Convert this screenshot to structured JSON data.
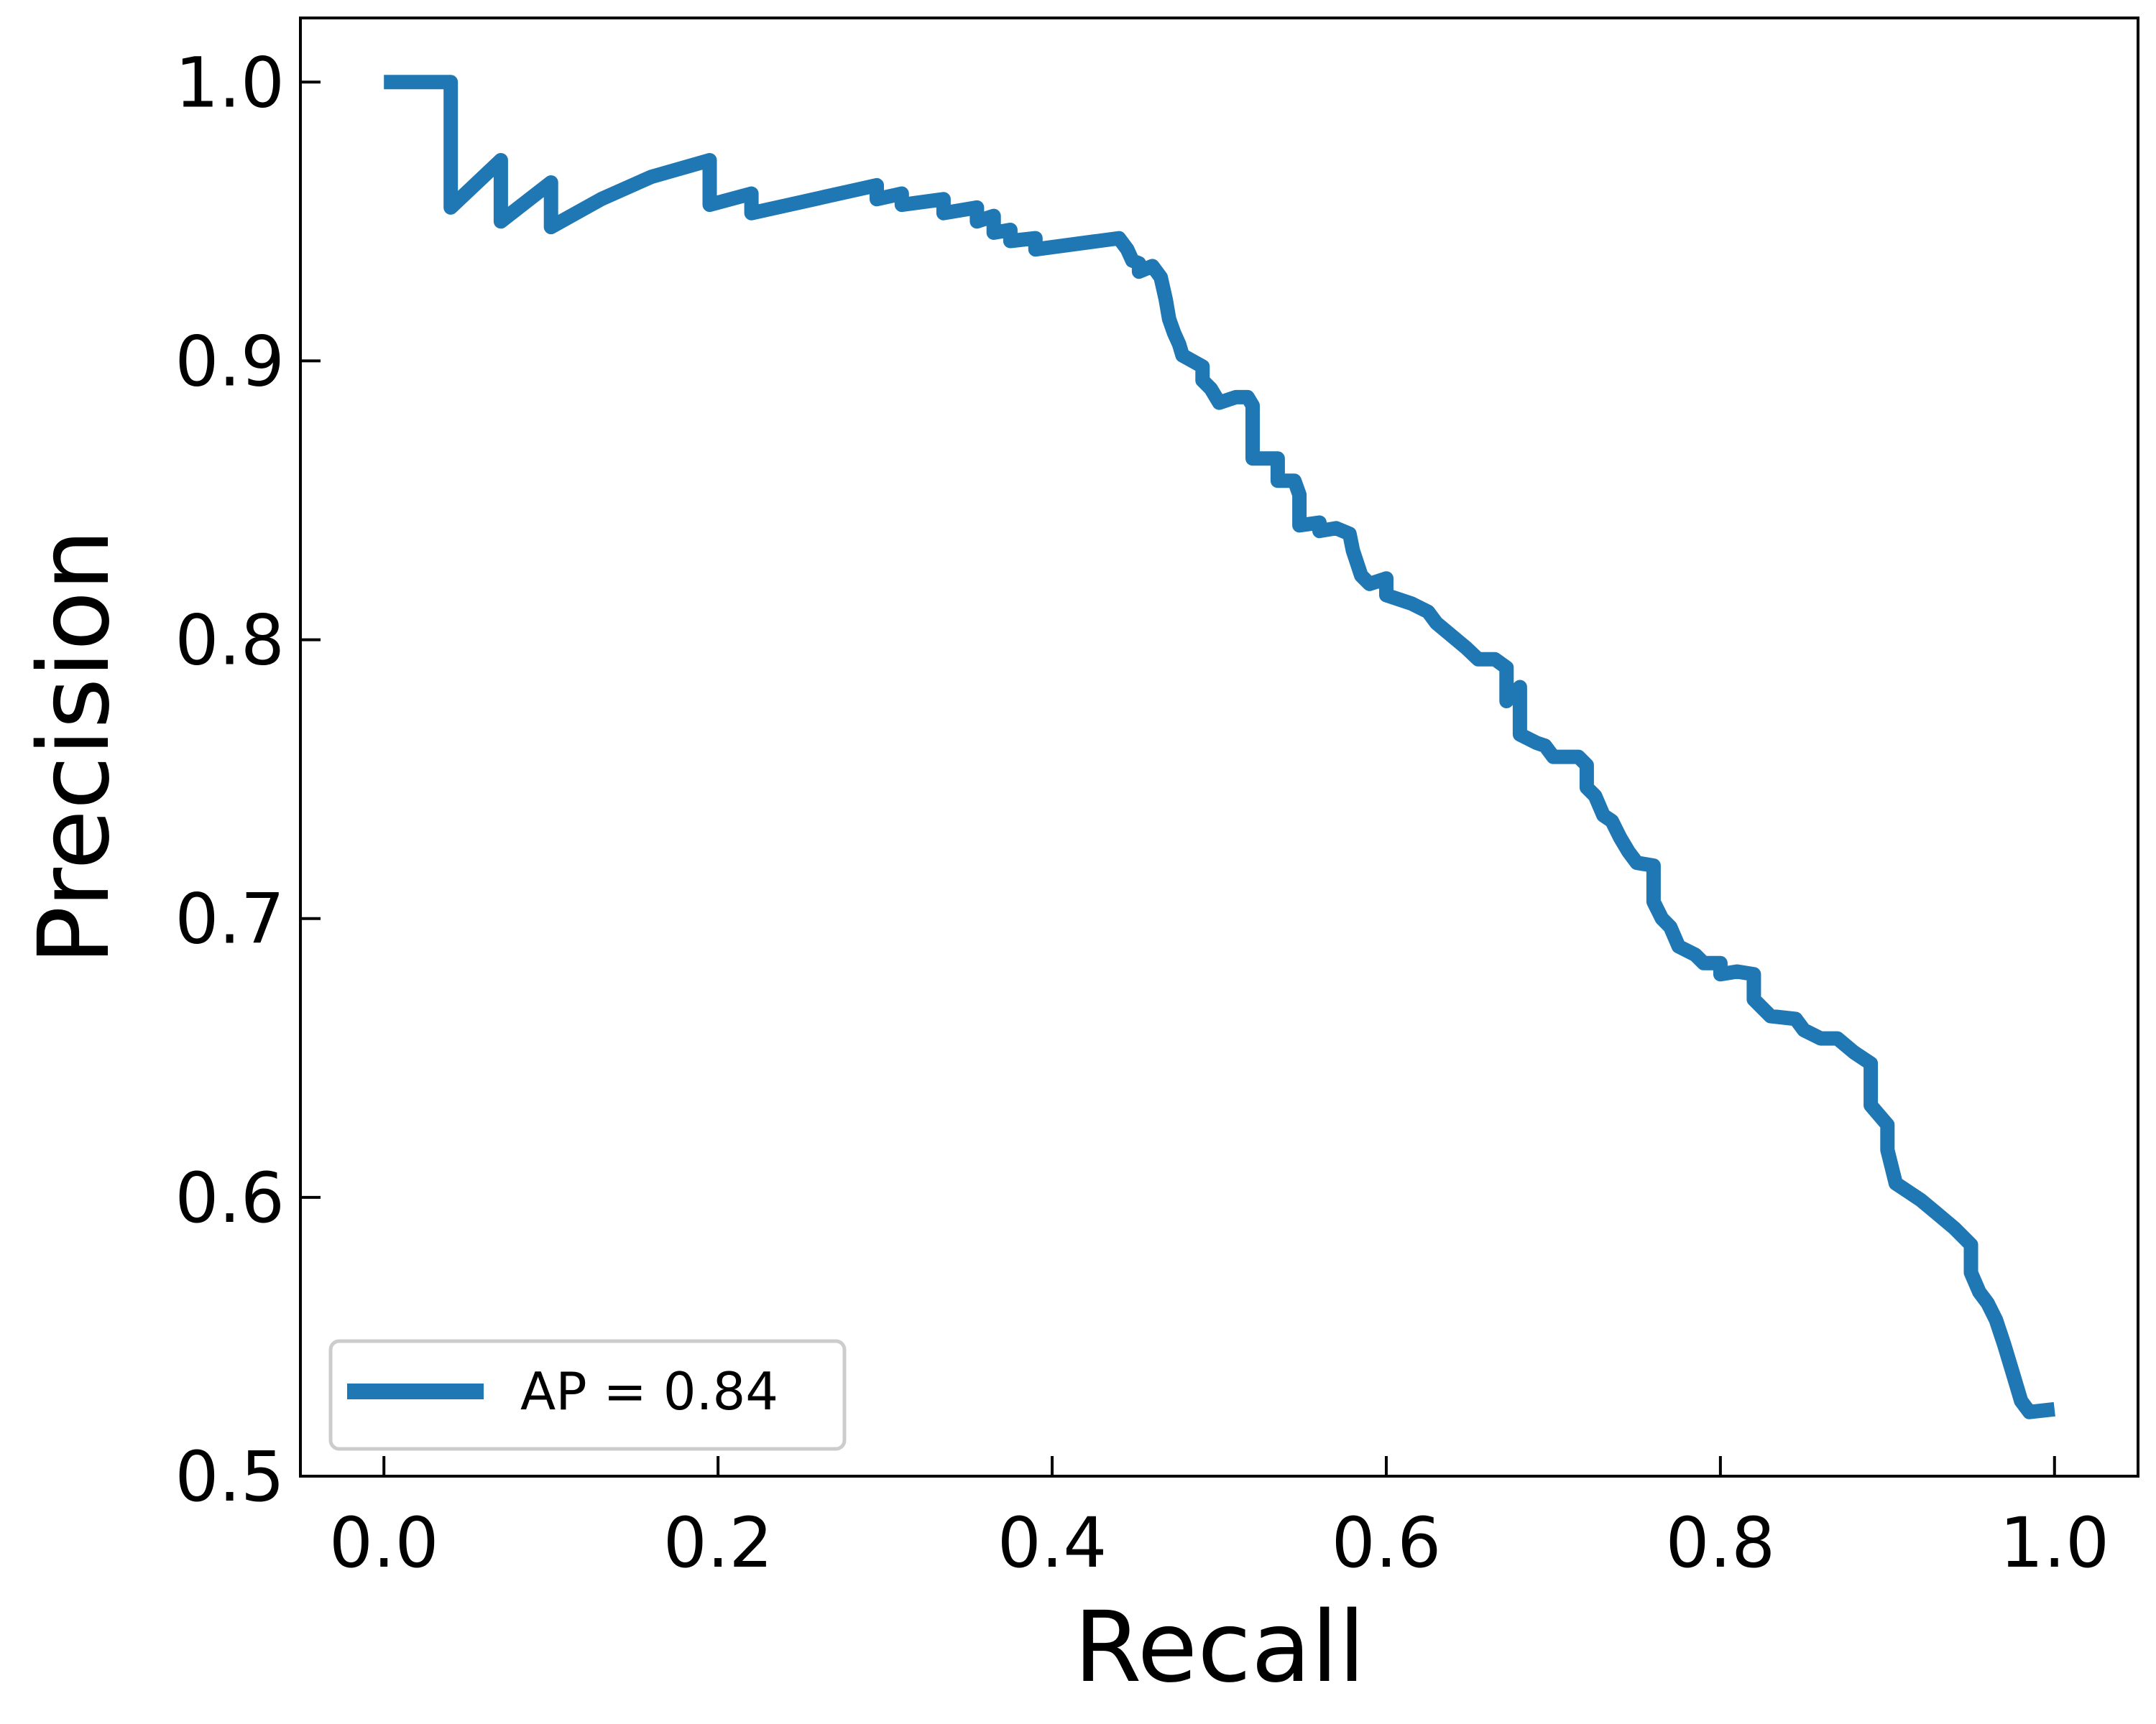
{
  "chart_data": {
    "type": "line",
    "title": "",
    "xlabel": "Recall",
    "ylabel": "Precision",
    "xlim": [
      -0.05,
      1.05
    ],
    "ylim": [
      0.5,
      1.023
    ],
    "x_ticks": [
      "0.0",
      "0.2",
      "0.4",
      "0.6",
      "0.8",
      "1.0"
    ],
    "y_ticks": [
      "0.5",
      "0.6",
      "0.7",
      "0.8",
      "0.9",
      "1.0"
    ],
    "grid": false,
    "legend_position": "lower-left",
    "series": [
      {
        "name": "AP = 0.84",
        "color": "#1f77b4",
        "points": [
          [
            0.0,
            1.0
          ],
          [
            0.04,
            1.0
          ],
          [
            0.04,
            0.955
          ],
          [
            0.07,
            0.972
          ],
          [
            0.07,
            0.95
          ],
          [
            0.1,
            0.964
          ],
          [
            0.1,
            0.948
          ],
          [
            0.13,
            0.958
          ],
          [
            0.16,
            0.966
          ],
          [
            0.195,
            0.972
          ],
          [
            0.195,
            0.956
          ],
          [
            0.22,
            0.96
          ],
          [
            0.22,
            0.953
          ],
          [
            0.25,
            0.957
          ],
          [
            0.295,
            0.963
          ],
          [
            0.295,
            0.958
          ],
          [
            0.31,
            0.96
          ],
          [
            0.31,
            0.956
          ],
          [
            0.335,
            0.958
          ],
          [
            0.335,
            0.953
          ],
          [
            0.355,
            0.955
          ],
          [
            0.355,
            0.95
          ],
          [
            0.365,
            0.952
          ],
          [
            0.365,
            0.946
          ],
          [
            0.375,
            0.947
          ],
          [
            0.375,
            0.943
          ],
          [
            0.39,
            0.944
          ],
          [
            0.39,
            0.94
          ],
          [
            0.44,
            0.944
          ],
          [
            0.445,
            0.94
          ],
          [
            0.448,
            0.936
          ],
          [
            0.452,
            0.935
          ],
          [
            0.452,
            0.932
          ],
          [
            0.46,
            0.934
          ],
          [
            0.465,
            0.93
          ],
          [
            0.468,
            0.922
          ],
          [
            0.47,
            0.915
          ],
          [
            0.473,
            0.91
          ],
          [
            0.476,
            0.906
          ],
          [
            0.478,
            0.902
          ],
          [
            0.49,
            0.898
          ],
          [
            0.49,
            0.893
          ],
          [
            0.495,
            0.89
          ],
          [
            0.5,
            0.885
          ],
          [
            0.51,
            0.887
          ],
          [
            0.517,
            0.887
          ],
          [
            0.52,
            0.884
          ],
          [
            0.52,
            0.865
          ],
          [
            0.535,
            0.865
          ],
          [
            0.535,
            0.857
          ],
          [
            0.545,
            0.857
          ],
          [
            0.548,
            0.852
          ],
          [
            0.548,
            0.841
          ],
          [
            0.56,
            0.842
          ],
          [
            0.56,
            0.839
          ],
          [
            0.57,
            0.84
          ],
          [
            0.578,
            0.838
          ],
          [
            0.58,
            0.832
          ],
          [
            0.585,
            0.823
          ],
          [
            0.59,
            0.82
          ],
          [
            0.6,
            0.822
          ],
          [
            0.6,
            0.816
          ],
          [
            0.615,
            0.813
          ],
          [
            0.625,
            0.81
          ],
          [
            0.63,
            0.806
          ],
          [
            0.64,
            0.801
          ],
          [
            0.648,
            0.797
          ],
          [
            0.655,
            0.793
          ],
          [
            0.665,
            0.793
          ],
          [
            0.672,
            0.79
          ],
          [
            0.672,
            0.778
          ],
          [
            0.68,
            0.783
          ],
          [
            0.68,
            0.766
          ],
          [
            0.69,
            0.763
          ],
          [
            0.695,
            0.762
          ],
          [
            0.7,
            0.758
          ],
          [
            0.715,
            0.758
          ],
          [
            0.72,
            0.755
          ],
          [
            0.72,
            0.747
          ],
          [
            0.725,
            0.744
          ],
          [
            0.73,
            0.737
          ],
          [
            0.735,
            0.735
          ],
          [
            0.74,
            0.729
          ],
          [
            0.745,
            0.724
          ],
          [
            0.75,
            0.72
          ],
          [
            0.76,
            0.719
          ],
          [
            0.76,
            0.706
          ],
          [
            0.765,
            0.7
          ],
          [
            0.77,
            0.697
          ],
          [
            0.775,
            0.69
          ],
          [
            0.785,
            0.687
          ],
          [
            0.79,
            0.684
          ],
          [
            0.8,
            0.684
          ],
          [
            0.8,
            0.68
          ],
          [
            0.81,
            0.681
          ],
          [
            0.82,
            0.68
          ],
          [
            0.82,
            0.671
          ],
          [
            0.83,
            0.665
          ],
          [
            0.845,
            0.664
          ],
          [
            0.85,
            0.66
          ],
          [
            0.86,
            0.657
          ],
          [
            0.87,
            0.657
          ],
          [
            0.88,
            0.652
          ],
          [
            0.89,
            0.648
          ],
          [
            0.89,
            0.633
          ],
          [
            0.9,
            0.626
          ],
          [
            0.9,
            0.617
          ],
          [
            0.905,
            0.605
          ],
          [
            0.91,
            0.603
          ],
          [
            0.92,
            0.599
          ],
          [
            0.93,
            0.594
          ],
          [
            0.94,
            0.589
          ],
          [
            0.95,
            0.583
          ],
          [
            0.95,
            0.573
          ],
          [
            0.955,
            0.566
          ],
          [
            0.96,
            0.562
          ],
          [
            0.965,
            0.556
          ],
          [
            0.97,
            0.547
          ],
          [
            0.975,
            0.537
          ],
          [
            0.98,
            0.527
          ],
          [
            0.985,
            0.523
          ],
          [
            1.0,
            0.524
          ]
        ]
      }
    ]
  }
}
